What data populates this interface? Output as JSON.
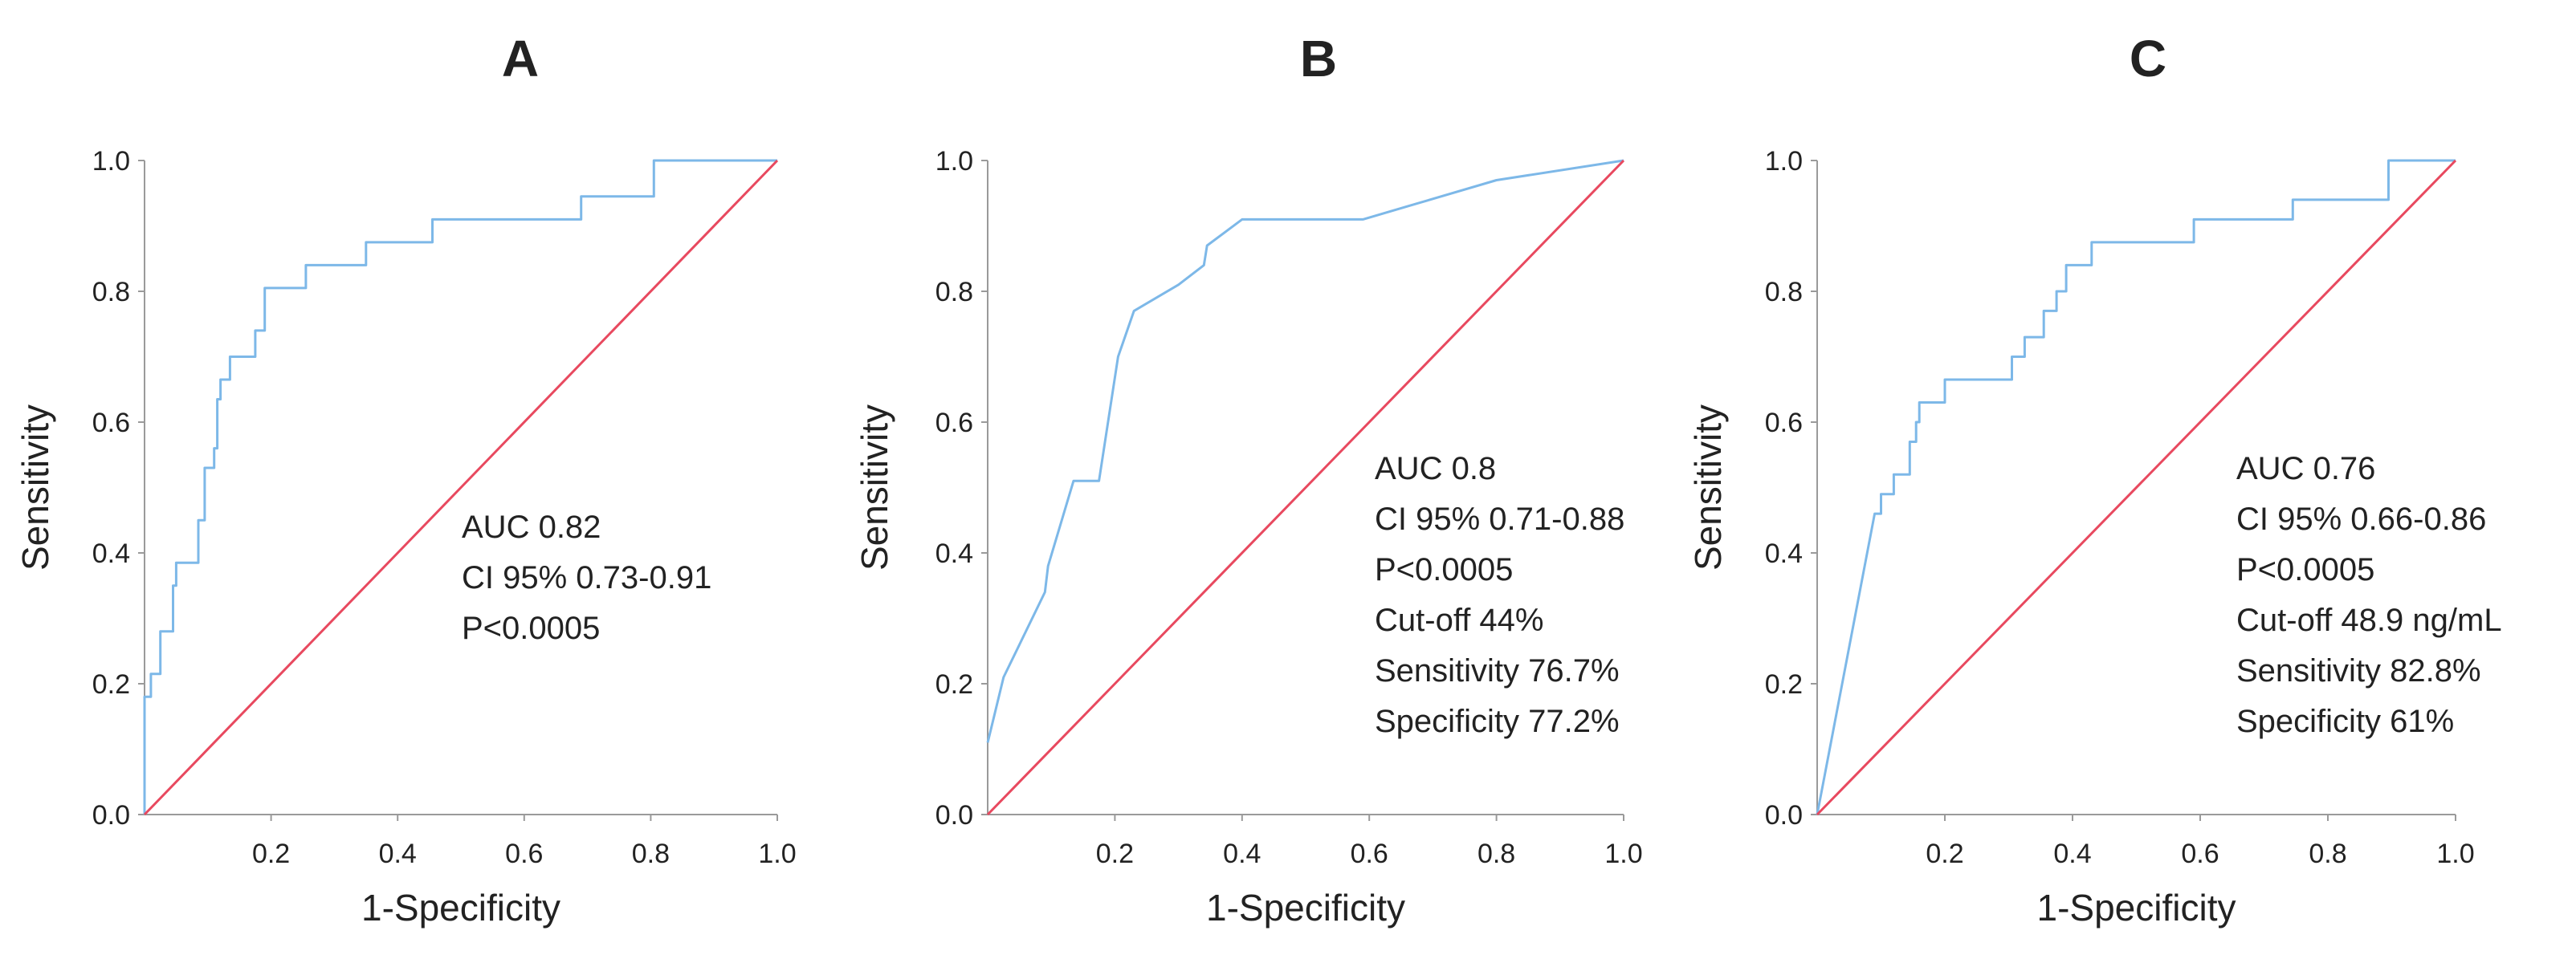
{
  "chart_data": [
    {
      "type": "line",
      "panel": "A",
      "title": "A",
      "xlabel": "1-Specificity",
      "ylabel": "Sensitivity",
      "xlim": [
        0,
        1
      ],
      "ylim": [
        0,
        1
      ],
      "xticks": [
        "0.2",
        "0.4",
        "0.6",
        "0.8",
        "1.0"
      ],
      "yticks": [
        "0.0",
        "0.2",
        "0.4",
        "0.6",
        "0.8",
        "1.0"
      ],
      "series": [
        {
          "name": "ROC",
          "color": "#7db8e8",
          "points": [
            [
              0,
              0
            ],
            [
              0,
              0.18
            ],
            [
              0.01,
              0.18
            ],
            [
              0.01,
              0.215
            ],
            [
              0.025,
              0.215
            ],
            [
              0.025,
              0.28
            ],
            [
              0.045,
              0.28
            ],
            [
              0.045,
              0.35
            ],
            [
              0.05,
              0.35
            ],
            [
              0.05,
              0.385
            ],
            [
              0.085,
              0.385
            ],
            [
              0.085,
              0.45
            ],
            [
              0.095,
              0.45
            ],
            [
              0.095,
              0.53
            ],
            [
              0.11,
              0.53
            ],
            [
              0.11,
              0.56
            ],
            [
              0.115,
              0.56
            ],
            [
              0.115,
              0.635
            ],
            [
              0.12,
              0.635
            ],
            [
              0.12,
              0.665
            ],
            [
              0.135,
              0.665
            ],
            [
              0.135,
              0.7
            ],
            [
              0.175,
              0.7
            ],
            [
              0.175,
              0.74
            ],
            [
              0.19,
              0.74
            ],
            [
              0.19,
              0.805
            ],
            [
              0.255,
              0.805
            ],
            [
              0.255,
              0.84
            ],
            [
              0.35,
              0.84
            ],
            [
              0.35,
              0.875
            ],
            [
              0.455,
              0.875
            ],
            [
              0.455,
              0.91
            ],
            [
              0.69,
              0.91
            ],
            [
              0.69,
              0.945
            ],
            [
              0.805,
              0.945
            ],
            [
              0.805,
              1
            ],
            [
              1,
              1
            ]
          ]
        },
        {
          "name": "Reference",
          "color": "#e8495f",
          "points": [
            [
              0,
              0
            ],
            [
              1,
              1
            ]
          ]
        }
      ],
      "annotations": [
        "AUC 0.82",
        "CI 95% 0.73-0.91",
        "P<0.0005"
      ]
    },
    {
      "type": "line",
      "panel": "B",
      "title": "B",
      "xlabel": "1-Specificity",
      "ylabel": "Sensitivity",
      "xlim": [
        0,
        1
      ],
      "ylim": [
        0,
        1
      ],
      "xticks": [
        "0.2",
        "0.4",
        "0.6",
        "0.8",
        "1.0"
      ],
      "yticks": [
        "0.0",
        "0.2",
        "0.4",
        "0.6",
        "0.8",
        "1.0"
      ],
      "series": [
        {
          "name": "ROC",
          "color": "#7db8e8",
          "points": [
            [
              0,
              0.11
            ],
            [
              0.025,
              0.21
            ],
            [
              0.09,
              0.34
            ],
            [
              0.095,
              0.38
            ],
            [
              0.135,
              0.51
            ],
            [
              0.175,
              0.51
            ],
            [
              0.205,
              0.7
            ],
            [
              0.23,
              0.77
            ],
            [
              0.3,
              0.81
            ],
            [
              0.34,
              0.84
            ],
            [
              0.345,
              0.87
            ],
            [
              0.4,
              0.91
            ],
            [
              0.59,
              0.91
            ],
            [
              0.8,
              0.97
            ],
            [
              1,
              1
            ]
          ]
        },
        {
          "name": "Reference",
          "color": "#e8495f",
          "points": [
            [
              0,
              0
            ],
            [
              1,
              1
            ]
          ]
        }
      ],
      "annotations": [
        "AUC 0.8",
        "CI 95% 0.71-0.88",
        "P<0.0005",
        "Cut-off 44%",
        "Sensitivity 76.7%",
        "Specificity 77.2%"
      ]
    },
    {
      "type": "line",
      "panel": "C",
      "title": "C",
      "xlabel": "1-Specificity",
      "ylabel": "Sensitivity",
      "xlim": [
        0,
        1
      ],
      "ylim": [
        0,
        1
      ],
      "xticks": [
        "0.2",
        "0.4",
        "0.6",
        "0.8",
        "1.0"
      ],
      "yticks": [
        "0.0",
        "0.2",
        "0.4",
        "0.6",
        "0.8",
        "1.0"
      ],
      "series": [
        {
          "name": "ROC",
          "color": "#7db8e8",
          "points": [
            [
              0,
              0
            ],
            [
              0.09,
              0.46
            ],
            [
              0.1,
              0.46
            ],
            [
              0.1,
              0.49
            ],
            [
              0.12,
              0.49
            ],
            [
              0.12,
              0.52
            ],
            [
              0.145,
              0.52
            ],
            [
              0.145,
              0.57
            ],
            [
              0.155,
              0.57
            ],
            [
              0.155,
              0.6
            ],
            [
              0.16,
              0.6
            ],
            [
              0.16,
              0.63
            ],
            [
              0.2,
              0.63
            ],
            [
              0.2,
              0.665
            ],
            [
              0.305,
              0.665
            ],
            [
              0.305,
              0.7
            ],
            [
              0.325,
              0.7
            ],
            [
              0.325,
              0.73
            ],
            [
              0.355,
              0.73
            ],
            [
              0.355,
              0.77
            ],
            [
              0.375,
              0.77
            ],
            [
              0.375,
              0.8
            ],
            [
              0.39,
              0.8
            ],
            [
              0.39,
              0.84
            ],
            [
              0.43,
              0.84
            ],
            [
              0.43,
              0.875
            ],
            [
              0.59,
              0.875
            ],
            [
              0.59,
              0.91
            ],
            [
              0.745,
              0.91
            ],
            [
              0.745,
              0.94
            ],
            [
              0.895,
              0.94
            ],
            [
              0.895,
              1
            ],
            [
              1,
              1
            ]
          ]
        },
        {
          "name": "Reference",
          "color": "#e8495f",
          "points": [
            [
              0,
              0
            ],
            [
              1,
              1
            ]
          ]
        }
      ],
      "annotations": [
        "AUC 0.76",
        "CI 95% 0.66-0.86",
        "P<0.0005",
        "Cut-off 48.9 ng/mL",
        "Sensitivity 82.8%",
        "Specificity 61%"
      ]
    }
  ]
}
